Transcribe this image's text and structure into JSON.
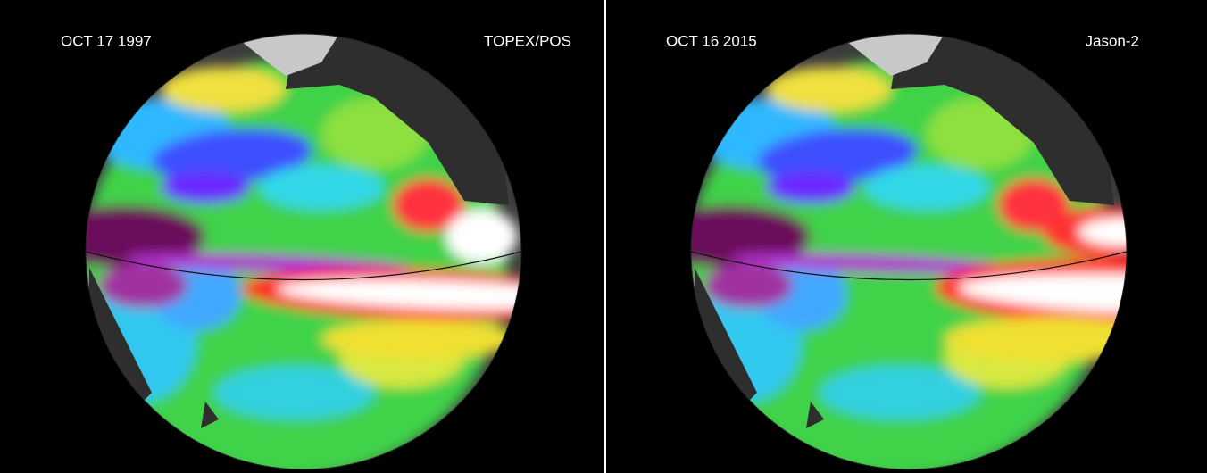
{
  "panels": [
    {
      "date": "OCT 17  1997",
      "satellite": "TOPEX/POS"
    },
    {
      "date": "OCT 16  2015",
      "satellite": "Jason-2"
    }
  ]
}
